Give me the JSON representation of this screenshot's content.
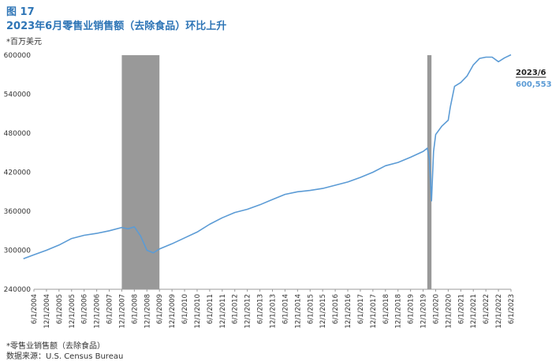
{
  "header": {
    "figure_number": "图 17",
    "title": "2023年6月零售业销售额（去除食品）环比上升"
  },
  "unit_note": "*百万美元",
  "footnote": "*零售业销售额（去除食品）",
  "source": "数据来源：U.S. Census Bureau",
  "colors": {
    "line": "#5b9bd5",
    "recession": "#999999",
    "title": "#2e75b6"
  },
  "chart_data": {
    "type": "line",
    "title": "2023年6月零售业销售额（去除食品）环比上升",
    "ylabel": "*百万美元",
    "ylim": [
      240000,
      600000
    ],
    "yticks": [
      "240000",
      "300000",
      "360000",
      "420000",
      "480000",
      "540000",
      "600000"
    ],
    "x_tick_labels": [
      "6/1/2004",
      "12/1/2004",
      "6/1/2005",
      "12/1/2005",
      "6/1/2006",
      "12/1/2006",
      "6/1/2007",
      "12/1/2007",
      "6/1/2008",
      "12/1/2008",
      "6/1/2009",
      "12/1/2009",
      "6/1/2010",
      "12/1/2010",
      "6/1/2011",
      "12/1/2011",
      "6/1/2012",
      "12/1/2012",
      "6/1/2013",
      "12/1/2013",
      "6/1/2014",
      "12/1/2014",
      "6/1/2015",
      "12/1/2015",
      "6/1/2016",
      "12/1/2016",
      "6/1/2017",
      "12/1/2017",
      "6/1/2018",
      "12/1/2018",
      "6/1/2019",
      "12/1/2019",
      "6/1/2020",
      "12/1/2020",
      "6/1/2021",
      "12/1/2021",
      "6/1/2022",
      "12/1/2022",
      "6/1/2023"
    ],
    "recession_periods": [
      [
        "12/1/2007",
        "6/1/2009"
      ],
      [
        "2/1/2020",
        "4/1/2020"
      ]
    ],
    "grid": false,
    "legend": "none",
    "series": [
      {
        "x": [
          "1/1/2004",
          "6/1/2004",
          "12/1/2004",
          "6/1/2005",
          "12/1/2005",
          "6/1/2006",
          "12/1/2006",
          "6/1/2007",
          "12/1/2007",
          "3/1/2008",
          "6/1/2008",
          "9/1/2008",
          "12/1/2008",
          "3/1/2009",
          "6/1/2009",
          "12/1/2009",
          "6/1/2010",
          "12/1/2010",
          "6/1/2011",
          "12/1/2011",
          "6/1/2012",
          "12/1/2012",
          "6/1/2013",
          "12/1/2013",
          "6/1/2014",
          "12/1/2014",
          "6/1/2015",
          "12/1/2015",
          "6/1/2016",
          "12/1/2016",
          "6/1/2017",
          "12/1/2017",
          "6/1/2018",
          "12/1/2018",
          "6/1/2019",
          "12/1/2019",
          "2/1/2020",
          "3/1/2020",
          "4/1/2020",
          "5/1/2020",
          "6/1/2020",
          "9/1/2020",
          "12/1/2020",
          "1/1/2021",
          "3/1/2021",
          "6/1/2021",
          "9/1/2021",
          "12/1/2021",
          "3/1/2022",
          "6/1/2022",
          "9/1/2022",
          "12/1/2022",
          "3/1/2023",
          "6/1/2023"
        ],
        "values": [
          287000,
          293000,
          300000,
          308000,
          318000,
          323000,
          326000,
          330000,
          335000,
          333000,
          336000,
          322000,
          300000,
          296000,
          302000,
          310000,
          319000,
          328000,
          340000,
          350000,
          358000,
          363000,
          370000,
          378000,
          386000,
          390000,
          392000,
          395000,
          400000,
          405000,
          412000,
          420000,
          430000,
          435000,
          443000,
          452000,
          457000,
          440000,
          376000,
          452000,
          478000,
          491000,
          500000,
          520000,
          552000,
          558000,
          568000,
          585000,
          595000,
          597000,
          597000,
          590000,
          596000,
          600553
        ]
      }
    ],
    "annotation": {
      "date": "2023/6",
      "value": "600,553"
    }
  }
}
